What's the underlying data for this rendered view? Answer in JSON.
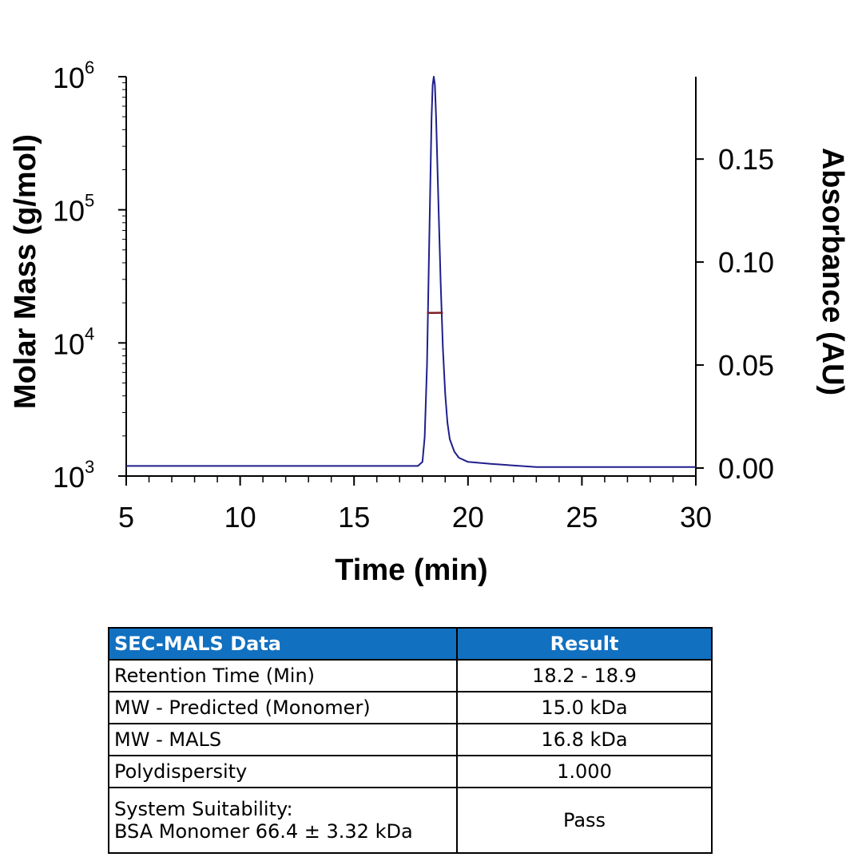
{
  "chart_data": {
    "type": "line",
    "x_axis": {
      "label": "Time (min)",
      "range": [
        5,
        30
      ],
      "ticks": [
        5,
        10,
        15,
        20,
        25,
        30
      ],
      "minor_step": 1
    },
    "y_left": {
      "label": "Molar Mass (g/mol)",
      "scale": "log",
      "range": [
        1000,
        1000000
      ],
      "ticks": [
        {
          "base": "10",
          "exp": "3"
        },
        {
          "base": "10",
          "exp": "4"
        },
        {
          "base": "10",
          "exp": "5"
        },
        {
          "base": "10",
          "exp": "6"
        }
      ]
    },
    "y_right": {
      "label": "Absorbance (AU)",
      "range": [
        0,
        0.19
      ],
      "ticks": [
        "0.00",
        "0.05",
        "0.10",
        "0.15"
      ],
      "tick_values": [
        0,
        0.05,
        0.1,
        0.15
      ]
    },
    "series": [
      {
        "axis": "right",
        "color": "#1f1f8c",
        "x": [
          5,
          10,
          15,
          17.8,
          18.0,
          18.1,
          18.2,
          18.3,
          18.4,
          18.45,
          18.5,
          18.55,
          18.6,
          18.7,
          18.8,
          18.9,
          19.0,
          19.1,
          19.2,
          19.4,
          19.6,
          20,
          21,
          23,
          25,
          30
        ],
        "y": [
          0.001,
          0.001,
          0.001,
          0.001,
          0.003,
          0.015,
          0.05,
          0.11,
          0.17,
          0.186,
          0.19,
          0.186,
          0.17,
          0.13,
          0.09,
          0.058,
          0.036,
          0.022,
          0.014,
          0.008,
          0.005,
          0.003,
          0.002,
          0.0005,
          0.0005,
          0.0005
        ]
      },
      {
        "axis": "left",
        "color": "#7b1f2a",
        "x": [
          18.2,
          18.3,
          18.4,
          18.5,
          18.6,
          18.7,
          18.8,
          18.9
        ],
        "y": [
          16800,
          16800,
          16800,
          16800,
          16800,
          16850,
          16850,
          16800
        ]
      }
    ],
    "grid": false
  },
  "table": {
    "header": {
      "label": "SEC-MALS Data",
      "result": "Result"
    },
    "rows": [
      {
        "label": "Retention Time (Min)",
        "value": "18.2 - 18.9"
      },
      {
        "label": "MW - Predicted (Monomer)",
        "value": "15.0 kDa"
      },
      {
        "label": "MW - MALS",
        "value": "16.8 kDa"
      },
      {
        "label": "Polydispersity",
        "value": "1.000"
      }
    ],
    "last_row": {
      "label_line1": "System Suitability:",
      "label_line2": "BSA Monomer 66.4 ± 3.32 kDa",
      "value": "Pass"
    }
  }
}
